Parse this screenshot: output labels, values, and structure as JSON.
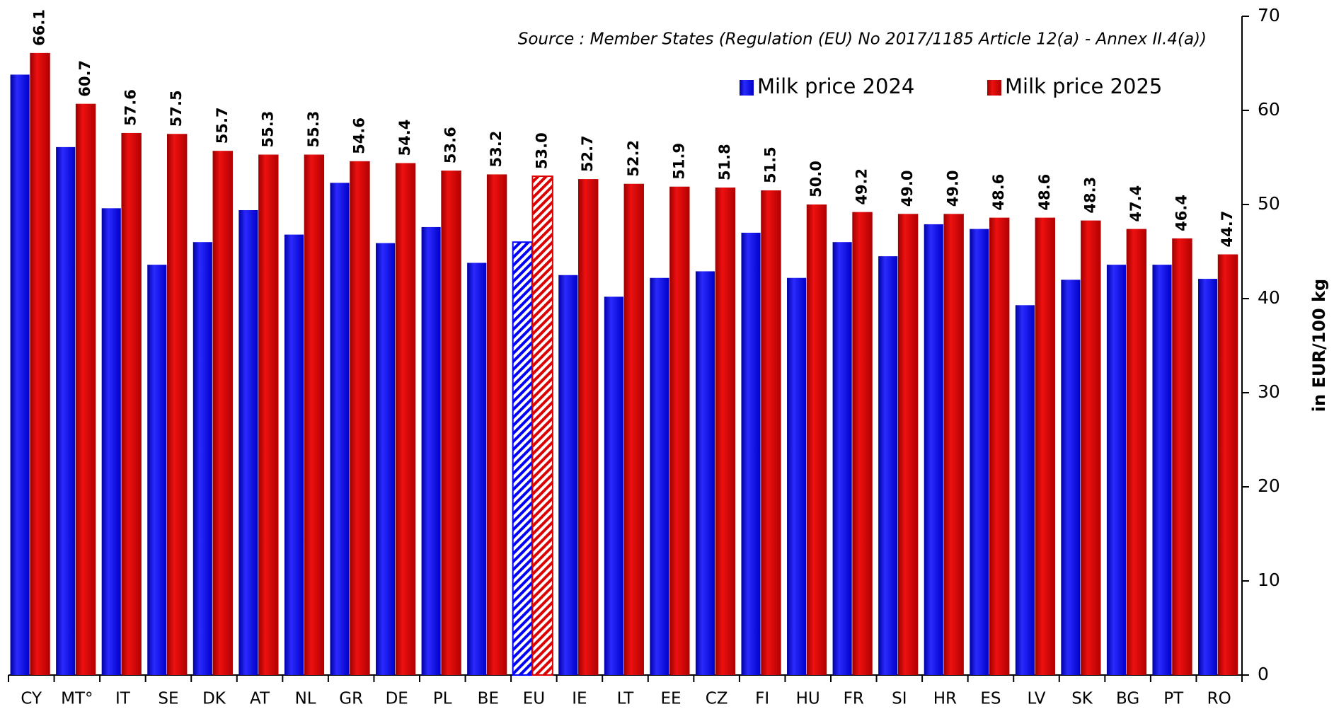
{
  "chart_data": {
    "type": "bar",
    "subtitle": "Source : Member States (Regulation (EU) No 2017/1185 Article 12(a) - Annex II.4(a))",
    "y_axis_label": "in EUR/100 kg",
    "y_axis_side": "right",
    "legend_position": "top-right",
    "highlight_index": 11,
    "highlight_pattern": "hatched",
    "ylim": [
      0,
      70
    ],
    "yticks": [
      0,
      10,
      20,
      30,
      40,
      50,
      60,
      70
    ],
    "grid": false,
    "categories": [
      "CY",
      "MT°",
      "IT",
      "SE",
      "DK",
      "AT",
      "NL",
      "GR",
      "DE",
      "PL",
      "BE",
      "EU",
      "IE",
      "LT",
      "EE",
      "CZ",
      "FI",
      "HU",
      "FR",
      "SI",
      "HR",
      "ES",
      "LV",
      "SK",
      "BG",
      "PT",
      "RO"
    ],
    "series": [
      {
        "name": "Milk price 2024",
        "color": "#0000ff",
        "values": [
          63.8,
          56.1,
          49.6,
          43.6,
          46.0,
          49.4,
          46.8,
          52.3,
          45.9,
          47.6,
          43.8,
          46.0,
          42.5,
          40.2,
          42.2,
          42.9,
          47.0,
          42.2,
          46.0,
          44.5,
          47.9,
          47.4,
          39.3,
          42.0,
          43.6,
          43.6,
          42.1
        ]
      },
      {
        "name": "Milk price 2025",
        "color": "#dd0000",
        "values": [
          66.1,
          60.7,
          57.6,
          57.5,
          55.7,
          55.3,
          55.3,
          54.6,
          54.4,
          53.6,
          53.2,
          53.0,
          52.7,
          52.2,
          51.9,
          51.8,
          51.5,
          50.0,
          49.2,
          49.0,
          49.0,
          48.6,
          48.6,
          48.3,
          47.4,
          46.4,
          44.7
        ],
        "value_labels": [
          "66.1",
          "60.7",
          "57.6",
          "57.5",
          "55.7",
          "55.3",
          "55.3",
          "54.6",
          "54.4",
          "53.6",
          "53.2",
          "53.0",
          "52.7",
          "52.2",
          "51.9",
          "51.8",
          "51.5",
          "50.0",
          "49.2",
          "49.0",
          "49.0",
          "48.6",
          "48.6",
          "48.3",
          "47.4",
          "46.4",
          "44.7"
        ]
      }
    ]
  }
}
